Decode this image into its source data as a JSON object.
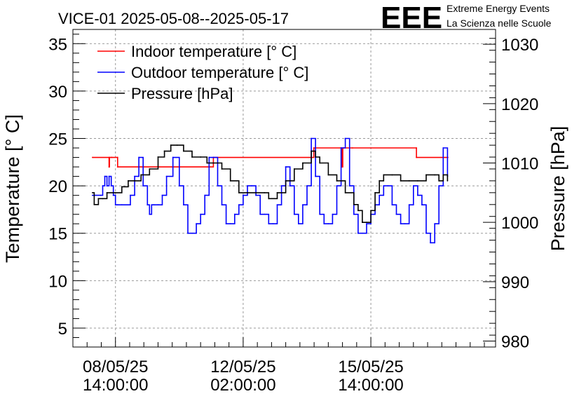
{
  "chart_data": {
    "type": "line",
    "title": "VICE-01 2025-05-08--2025-05-17",
    "logo": {
      "text": "EEE",
      "line1": "Extreme Energy Events",
      "line2": "La Scienza nelle Scuole",
      "color": "#1a1aff"
    },
    "xlabel": "",
    "ylabel": "Temperature [° C]",
    "y2label": "Pressure [hPa]",
    "xlim": [
      0,
      9.93
    ],
    "ylim": [
      3,
      36.5
    ],
    "y2lim": [
      979,
      1032.5
    ],
    "grid": true,
    "legend_position": "top-left",
    "yticks": [
      5,
      10,
      15,
      20,
      25,
      30,
      35
    ],
    "yticks_labels": [
      "5",
      "10",
      "15",
      "20",
      "25",
      "30",
      "35"
    ],
    "y2ticks": [
      980,
      990,
      1000,
      1010,
      1020,
      1030
    ],
    "y2ticks_labels": [
      "980",
      "990",
      "1000",
      "1010",
      "1020",
      "1030"
    ],
    "xtick_positions": [
      1.0,
      4.0,
      7.0
    ],
    "xtick_labels": [
      {
        "date": "08/05/25",
        "time": "14:00:00"
      },
      {
        "date": "12/05/25",
        "time": "02:00:00"
      },
      {
        "date": "15/05/25",
        "time": "14:00:00"
      }
    ],
    "series": [
      {
        "name": "Indoor temperature [° C]",
        "color": "#ff0000",
        "axis": "left",
        "x": [
          0.46,
          0.85,
          0.85,
          0.86,
          0.9,
          0.92,
          1.05,
          1.05,
          3.2,
          3.3,
          5.6,
          5.66,
          6.3,
          6.32,
          6.34,
          6.36,
          6.57,
          8.07,
          8.07,
          8.81
        ],
        "y": [
          23,
          23,
          22,
          23,
          23,
          23,
          23,
          22,
          22,
          23,
          23,
          24,
          24,
          22,
          24,
          24,
          24,
          24,
          23,
          23
        ]
      },
      {
        "name": "Outdoor temperature [° C]",
        "color": "#0000ff",
        "axis": "left",
        "x": [
          0.46,
          0.65,
          0.7,
          0.75,
          0.8,
          0.85,
          0.9,
          0.95,
          1.0,
          1.05,
          1.15,
          1.35,
          1.45,
          1.55,
          1.65,
          1.75,
          1.8,
          1.85,
          1.9,
          2.0,
          2.1,
          2.2,
          2.35,
          2.5,
          2.6,
          2.7,
          2.8,
          2.9,
          3.0,
          3.1,
          3.2,
          3.3,
          3.4,
          3.5,
          3.6,
          3.7,
          3.8,
          3.9,
          4.0,
          4.1,
          4.2,
          4.3,
          4.4,
          4.5,
          4.6,
          4.7,
          4.8,
          4.9,
          5.0,
          5.1,
          5.2,
          5.3,
          5.4,
          5.5,
          5.6,
          5.7,
          5.8,
          5.9,
          6.0,
          6.1,
          6.2,
          6.3,
          6.4,
          6.5,
          6.6,
          6.7,
          6.8,
          6.9,
          7.0,
          7.1,
          7.2,
          7.3,
          7.4,
          7.5,
          7.6,
          7.7,
          7.8,
          7.9,
          8.0,
          8.1,
          8.2,
          8.3,
          8.4,
          8.5,
          8.6,
          8.7,
          8.8
        ],
        "y": [
          19,
          19,
          20,
          21,
          20,
          21,
          20,
          19,
          18,
          18,
          18,
          19,
          21,
          23,
          20,
          18,
          17,
          18,
          18,
          18,
          19,
          21,
          23,
          20,
          18,
          15,
          15,
          16,
          17,
          19,
          23,
          23,
          20,
          18,
          16,
          16,
          17,
          18,
          19,
          20,
          20,
          19,
          17,
          17,
          16,
          16,
          18,
          20,
          22,
          20,
          17,
          16,
          18,
          20,
          25,
          21,
          17,
          16,
          16,
          17,
          20,
          24,
          25,
          20,
          17,
          15,
          15,
          16,
          17,
          18,
          19,
          20,
          20,
          18,
          17,
          16,
          16,
          18,
          20,
          19,
          18,
          15,
          14,
          16,
          20,
          24,
          21
        ]
      },
      {
        "name": "Pressure [hPa]",
        "color": "#000000",
        "axis": "right",
        "x": [
          0.46,
          0.5,
          0.6,
          0.7,
          0.8,
          1.0,
          1.15,
          1.3,
          1.45,
          1.6,
          1.8,
          2.0,
          2.15,
          2.3,
          2.45,
          2.6,
          2.8,
          3.0,
          3.15,
          3.3,
          3.5,
          3.7,
          3.9,
          4.1,
          4.3,
          4.5,
          4.6,
          4.8,
          5.0,
          5.2,
          5.4,
          5.6,
          5.7,
          5.8,
          6.0,
          6.2,
          6.4,
          6.6,
          6.7,
          6.8,
          6.9,
          7.0,
          7.1,
          7.2,
          7.3,
          7.5,
          7.7,
          7.9,
          8.1,
          8.3,
          8.5,
          8.6,
          8.7,
          8.8
        ],
        "y": [
          1005,
          1003,
          1004,
          1004,
          1005,
          1005,
          1006,
          1007,
          1007,
          1008,
          1009,
          1011,
          1012,
          1013,
          1013,
          1012,
          1011,
          1011,
          1010,
          1010,
          1009,
          1007,
          1005,
          1005,
          1005,
          1005,
          1004,
          1005,
          1007,
          1009,
          1010,
          1012,
          1011,
          1010,
          1008,
          1007,
          1005,
          1003,
          1002,
          1000,
          1000,
          1002,
          1005,
          1007,
          1008,
          1008,
          1007,
          1007,
          1007,
          1008,
          1008,
          1007,
          1008,
          1007
        ]
      }
    ]
  }
}
